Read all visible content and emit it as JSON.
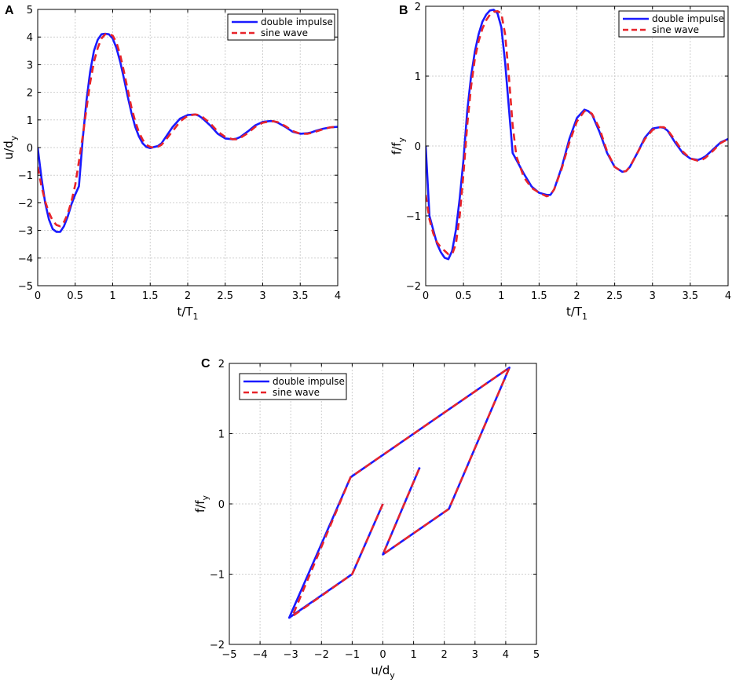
{
  "panels": [
    {
      "label": "A"
    },
    {
      "label": "B"
    },
    {
      "label": "C"
    }
  ],
  "colors": {
    "double_impulse": "#1a1aff",
    "sine_wave": "#e8242a",
    "grid": "#cfcfcf",
    "axis": "#000000"
  },
  "chart_data": [
    {
      "type": "line",
      "panel": "A",
      "xlabel": "t/T",
      "xlabel_sub": "1",
      "ylabel": "u/d",
      "ylabel_sub": "y",
      "xlim": [
        0,
        4
      ],
      "ylim": [
        -5,
        5
      ],
      "xticks": [
        "0",
        "0.5",
        "1",
        "1.5",
        "2",
        "2.5",
        "3",
        "3.5",
        "4"
      ],
      "xtick_values": [
        0,
        0.5,
        1,
        1.5,
        2,
        2.5,
        3,
        3.5,
        4
      ],
      "yticks": [
        "−5",
        "−4",
        "−3",
        "−2",
        "−1",
        "0",
        "1",
        "2",
        "3",
        "4",
        "5"
      ],
      "ytick_values": [
        -5,
        -4,
        -3,
        -2,
        -1,
        0,
        1,
        2,
        3,
        4,
        5
      ],
      "grid": true,
      "legend_position": "top-right",
      "series": [
        {
          "name": "double impulse",
          "style": "solid",
          "x": [
            0,
            0.05,
            0.1,
            0.15,
            0.2,
            0.25,
            0.3,
            0.35,
            0.4,
            0.45,
            0.5,
            0.55,
            0.6,
            0.65,
            0.7,
            0.75,
            0.8,
            0.85,
            0.9,
            0.95,
            1.0,
            1.05,
            1.1,
            1.15,
            1.2,
            1.25,
            1.3,
            1.35,
            1.4,
            1.45,
            1.5,
            1.55,
            1.6,
            1.65,
            1.7,
            1.8,
            1.9,
            2.0,
            2.1,
            2.15,
            2.2,
            2.3,
            2.4,
            2.5,
            2.6,
            2.65,
            2.7,
            2.8,
            2.9,
            3.0,
            3.1,
            3.15,
            3.2,
            3.3,
            3.4,
            3.5,
            3.6,
            3.65,
            3.7,
            3.8,
            3.9,
            4.0
          ],
          "y": [
            0,
            -1.1,
            -2.0,
            -2.6,
            -2.95,
            -3.05,
            -3.05,
            -2.85,
            -2.5,
            -2.05,
            -1.7,
            -1.4,
            0.3,
            1.7,
            2.75,
            3.5,
            3.9,
            4.1,
            4.12,
            4.1,
            3.95,
            3.6,
            3.1,
            2.5,
            1.85,
            1.25,
            0.75,
            0.4,
            0.15,
            0.02,
            -0.02,
            0.02,
            0.05,
            0.15,
            0.35,
            0.75,
            1.05,
            1.18,
            1.2,
            1.15,
            1.05,
            0.8,
            0.5,
            0.33,
            0.3,
            0.32,
            0.38,
            0.58,
            0.8,
            0.93,
            0.96,
            0.95,
            0.9,
            0.75,
            0.57,
            0.5,
            0.52,
            0.55,
            0.6,
            0.68,
            0.73,
            0.75
          ]
        },
        {
          "name": "sine wave",
          "style": "dashed",
          "x": [
            0,
            0.05,
            0.1,
            0.15,
            0.2,
            0.25,
            0.3,
            0.35,
            0.4,
            0.45,
            0.5,
            0.55,
            0.6,
            0.65,
            0.7,
            0.75,
            0.8,
            0.85,
            0.9,
            0.95,
            1.0,
            1.05,
            1.1,
            1.15,
            1.2,
            1.25,
            1.3,
            1.35,
            1.4,
            1.45,
            1.5,
            1.55,
            1.6,
            1.65,
            1.7,
            1.8,
            1.9,
            2.0,
            2.1,
            2.15,
            2.2,
            2.3,
            2.4,
            2.5,
            2.6,
            2.65,
            2.7,
            2.8,
            2.9,
            3.0,
            3.1,
            3.15,
            3.2,
            3.3,
            3.4,
            3.5,
            3.6,
            3.65,
            3.7,
            3.8,
            3.9,
            4.0
          ],
          "y": [
            -0.7,
            -1.4,
            -1.95,
            -2.35,
            -2.65,
            -2.8,
            -2.85,
            -2.7,
            -2.4,
            -1.95,
            -1.35,
            -0.5,
            0.4,
            1.4,
            2.35,
            3.1,
            3.6,
            3.95,
            4.1,
            4.12,
            4.05,
            3.8,
            3.35,
            2.75,
            2.1,
            1.45,
            0.95,
            0.55,
            0.28,
            0.1,
            0.02,
            0.0,
            0.02,
            0.1,
            0.25,
            0.6,
            0.95,
            1.15,
            1.2,
            1.18,
            1.1,
            0.88,
            0.58,
            0.38,
            0.3,
            0.3,
            0.35,
            0.52,
            0.75,
            0.9,
            0.95,
            0.95,
            0.92,
            0.78,
            0.6,
            0.5,
            0.5,
            0.53,
            0.57,
            0.66,
            0.73,
            0.76
          ]
        }
      ]
    },
    {
      "type": "line",
      "panel": "B",
      "xlabel": "t/T",
      "xlabel_sub": "1",
      "ylabel": "f/f",
      "ylabel_sub": "y",
      "xlim": [
        0,
        4
      ],
      "ylim": [
        -2,
        2
      ],
      "xticks": [
        "0",
        "0.5",
        "1",
        "1.5",
        "2",
        "2.5",
        "3",
        "3.5",
        "4"
      ],
      "xtick_values": [
        0,
        0.5,
        1,
        1.5,
        2,
        2.5,
        3,
        3.5,
        4
      ],
      "yticks": [
        "−2",
        "−1",
        "0",
        "1",
        "2"
      ],
      "ytick_values": [
        -2,
        -1,
        0,
        1,
        2
      ],
      "grid": true,
      "legend_position": "top-right",
      "series": [
        {
          "name": "double impulse",
          "style": "solid",
          "x": [
            0,
            0.05,
            0.1,
            0.15,
            0.2,
            0.25,
            0.3,
            0.35,
            0.4,
            0.45,
            0.5,
            0.55,
            0.6,
            0.65,
            0.7,
            0.75,
            0.8,
            0.85,
            0.9,
            0.95,
            1.0,
            1.05,
            1.1,
            1.15,
            1.2,
            1.3,
            1.4,
            1.5,
            1.6,
            1.65,
            1.7,
            1.8,
            1.9,
            2.0,
            2.1,
            2.15,
            2.2,
            2.3,
            2.4,
            2.5,
            2.6,
            2.65,
            2.7,
            2.8,
            2.9,
            3.0,
            3.1,
            3.15,
            3.2,
            3.3,
            3.4,
            3.5,
            3.6,
            3.65,
            3.7,
            3.8,
            3.9,
            4.0
          ],
          "y": [
            0,
            -1.0,
            -1.2,
            -1.4,
            -1.52,
            -1.6,
            -1.62,
            -1.5,
            -1.2,
            -0.75,
            -0.2,
            0.5,
            1.0,
            1.35,
            1.6,
            1.78,
            1.88,
            1.94,
            1.95,
            1.9,
            1.7,
            1.2,
            0.55,
            -0.1,
            -0.2,
            -0.4,
            -0.58,
            -0.67,
            -0.7,
            -0.7,
            -0.62,
            -0.3,
            0.1,
            0.4,
            0.52,
            0.5,
            0.45,
            0.2,
            -0.1,
            -0.3,
            -0.37,
            -0.36,
            -0.3,
            -0.1,
            0.12,
            0.25,
            0.27,
            0.26,
            0.22,
            0.05,
            -0.1,
            -0.18,
            -0.2,
            -0.18,
            -0.15,
            -0.05,
            0.05,
            0.1
          ]
        },
        {
          "name": "sine wave",
          "style": "dashed",
          "x": [
            0,
            0.05,
            0.1,
            0.15,
            0.2,
            0.25,
            0.3,
            0.35,
            0.4,
            0.45,
            0.5,
            0.55,
            0.6,
            0.65,
            0.7,
            0.75,
            0.8,
            0.85,
            0.9,
            0.95,
            1.0,
            1.05,
            1.1,
            1.15,
            1.2,
            1.3,
            1.4,
            1.5,
            1.6,
            1.65,
            1.7,
            1.8,
            1.9,
            2.0,
            2.1,
            2.15,
            2.2,
            2.3,
            2.4,
            2.5,
            2.6,
            2.65,
            2.7,
            2.8,
            2.9,
            3.0,
            3.1,
            3.15,
            3.2,
            3.3,
            3.4,
            3.5,
            3.6,
            3.65,
            3.7,
            3.8,
            3.9,
            4.0
          ],
          "y": [
            -0.7,
            -1.05,
            -1.25,
            -1.38,
            -1.45,
            -1.5,
            -1.55,
            -1.55,
            -1.4,
            -1.0,
            -0.4,
            0.3,
            0.85,
            1.25,
            1.5,
            1.68,
            1.8,
            1.88,
            1.92,
            1.93,
            1.9,
            1.6,
            1.0,
            0.3,
            -0.15,
            -0.45,
            -0.6,
            -0.67,
            -0.72,
            -0.7,
            -0.62,
            -0.32,
            0.05,
            0.35,
            0.5,
            0.5,
            0.46,
            0.25,
            -0.08,
            -0.3,
            -0.37,
            -0.36,
            -0.3,
            -0.1,
            0.1,
            0.23,
            0.27,
            0.27,
            0.23,
            0.08,
            -0.08,
            -0.18,
            -0.21,
            -0.2,
            -0.17,
            -0.07,
            0.04,
            0.1
          ]
        }
      ]
    },
    {
      "type": "line",
      "panel": "C",
      "xlabel": "u/d",
      "xlabel_sub": "y",
      "ylabel": "f/f",
      "ylabel_sub": "y",
      "xlim": [
        -5,
        5
      ],
      "ylim": [
        -2,
        2
      ],
      "xticks": [
        "−5",
        "−4",
        "−3",
        "−2",
        "−1",
        "0",
        "1",
        "2",
        "3",
        "4",
        "5"
      ],
      "xtick_values": [
        -5,
        -4,
        -3,
        -2,
        -1,
        0,
        1,
        2,
        3,
        4,
        5
      ],
      "yticks": [
        "−2",
        "−1",
        "0",
        "1",
        "2"
      ],
      "ytick_values": [
        -2,
        -1,
        0,
        1,
        2
      ],
      "grid": true,
      "legend_position": "top-left",
      "series": [
        {
          "name": "double impulse",
          "style": "solid",
          "x": [
            0,
            -1.0,
            -3.05,
            -1.05,
            4.12,
            2.15,
            0.0,
            1.2
          ],
          "y": [
            0,
            -1.0,
            -1.62,
            0.38,
            1.94,
            -0.07,
            -0.72,
            0.52
          ]
        },
        {
          "name": "sine wave",
          "style": "dashed",
          "x": [
            0,
            -1.0,
            -2.95,
            -1.05,
            4.12,
            2.15,
            0.0,
            1.2
          ],
          "y": [
            0,
            -1.0,
            -1.6,
            0.38,
            1.94,
            -0.07,
            -0.72,
            0.52
          ]
        }
      ]
    }
  ]
}
